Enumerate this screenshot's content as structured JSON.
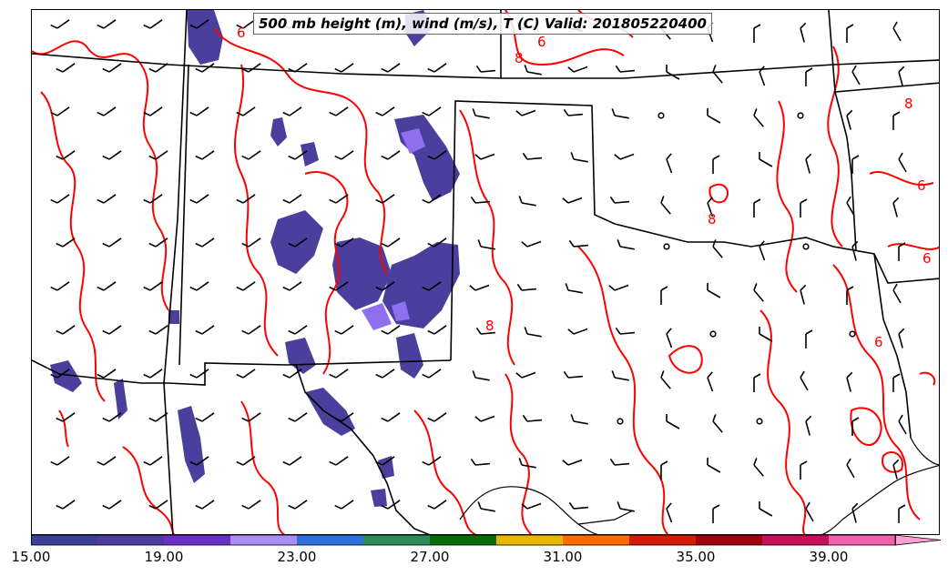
{
  "title": "500 mb height (m), wind (m/s), T (C) Valid: 201805220400",
  "contour_labels": [
    "6",
    "8",
    "8",
    "6",
    "8",
    "6",
    "6",
    "8",
    "6"
  ],
  "colorbar": {
    "tick_labels": [
      "15.00",
      "19.00",
      "23.00",
      "27.00",
      "31.00",
      "35.00",
      "39.00"
    ],
    "colors": [
      "#3b3f96",
      "#4e3aa0",
      "#6a2fc4",
      "#a98cf5",
      "#2f6fdb",
      "#2e8b57",
      "#0a6b0a",
      "#e8b800",
      "#ff6a00",
      "#d61a0a",
      "#a00010",
      "#c8105a",
      "#f060b0",
      "#ff9ed0"
    ]
  },
  "layers": {
    "contour_color": "#ff0000",
    "border_color": "#000000",
    "wind_barbs": "black barbs",
    "shading": "purple speed fill 15-19 m/s"
  }
}
